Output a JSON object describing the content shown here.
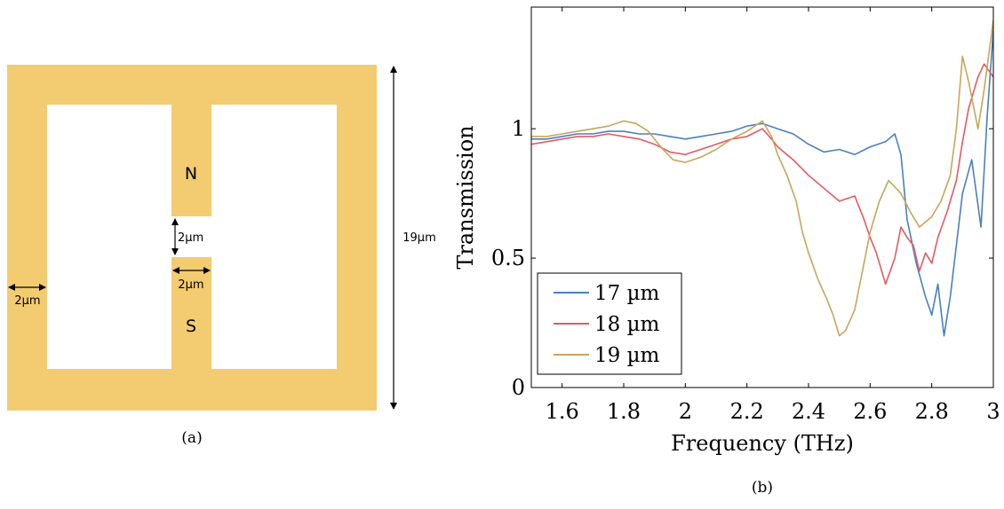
{
  "panel_a": {
    "caption": "(a)",
    "gap_label": "2µm",
    "width_label": "2µm",
    "arm_label": "2µm",
    "height_label": "19µm",
    "north_label": "N",
    "south_label": "S",
    "fill_color": "#f3cb70"
  },
  "panel_b": {
    "caption": "(b)"
  },
  "chart_data": {
    "type": "line",
    "title": "",
    "xlabel": "Frequency (THz)",
    "ylabel": "Transmission",
    "xlim": [
      1.5,
      3.0
    ],
    "ylim": [
      0,
      1.47
    ],
    "xticks": [
      1.6,
      1.8,
      2.0,
      2.2,
      2.4,
      2.6,
      2.8,
      3.0
    ],
    "xtick_labels": [
      "1.6",
      "1.8",
      "2",
      "2.2",
      "2.4",
      "2.6",
      "2.8",
      "3"
    ],
    "yticks": [
      0,
      0.5,
      1
    ],
    "ytick_labels": [
      "0",
      "0.5",
      "1"
    ],
    "grid": false,
    "legend_position": "bottom-left",
    "series": [
      {
        "name": "17 µm",
        "color": "#4a7fc1",
        "points": [
          [
            1.5,
            0.96
          ],
          [
            1.55,
            0.96
          ],
          [
            1.6,
            0.97
          ],
          [
            1.65,
            0.98
          ],
          [
            1.7,
            0.98
          ],
          [
            1.75,
            0.99
          ],
          [
            1.8,
            0.99
          ],
          [
            1.85,
            0.98
          ],
          [
            1.9,
            0.98
          ],
          [
            1.95,
            0.97
          ],
          [
            2.0,
            0.96
          ],
          [
            2.05,
            0.97
          ],
          [
            2.1,
            0.98
          ],
          [
            2.15,
            0.99
          ],
          [
            2.2,
            1.01
          ],
          [
            2.25,
            1.02
          ],
          [
            2.3,
            1.0
          ],
          [
            2.35,
            0.98
          ],
          [
            2.4,
            0.94
          ],
          [
            2.45,
            0.91
          ],
          [
            2.5,
            0.92
          ],
          [
            2.55,
            0.9
          ],
          [
            2.6,
            0.93
          ],
          [
            2.65,
            0.95
          ],
          [
            2.68,
            0.98
          ],
          [
            2.7,
            0.9
          ],
          [
            2.72,
            0.65
          ],
          [
            2.75,
            0.48
          ],
          [
            2.78,
            0.35
          ],
          [
            2.8,
            0.28
          ],
          [
            2.82,
            0.4
          ],
          [
            2.84,
            0.2
          ],
          [
            2.86,
            0.35
          ],
          [
            2.88,
            0.55
          ],
          [
            2.9,
            0.75
          ],
          [
            2.93,
            0.88
          ],
          [
            2.96,
            0.62
          ],
          [
            2.98,
            1.05
          ],
          [
            3.0,
            1.38
          ]
        ]
      },
      {
        "name": "18 µm",
        "color": "#e35a62",
        "points": [
          [
            1.5,
            0.94
          ],
          [
            1.55,
            0.95
          ],
          [
            1.6,
            0.96
          ],
          [
            1.65,
            0.97
          ],
          [
            1.7,
            0.97
          ],
          [
            1.75,
            0.98
          ],
          [
            1.8,
            0.97
          ],
          [
            1.85,
            0.96
          ],
          [
            1.9,
            0.94
          ],
          [
            1.95,
            0.91
          ],
          [
            2.0,
            0.9
          ],
          [
            2.05,
            0.92
          ],
          [
            2.1,
            0.94
          ],
          [
            2.15,
            0.96
          ],
          [
            2.2,
            0.97
          ],
          [
            2.25,
            1.0
          ],
          [
            2.28,
            0.96
          ],
          [
            2.3,
            0.93
          ],
          [
            2.35,
            0.88
          ],
          [
            2.4,
            0.82
          ],
          [
            2.45,
            0.77
          ],
          [
            2.5,
            0.72
          ],
          [
            2.55,
            0.74
          ],
          [
            2.58,
            0.65
          ],
          [
            2.6,
            0.58
          ],
          [
            2.62,
            0.52
          ],
          [
            2.65,
            0.4
          ],
          [
            2.68,
            0.5
          ],
          [
            2.7,
            0.62
          ],
          [
            2.72,
            0.58
          ],
          [
            2.74,
            0.55
          ],
          [
            2.76,
            0.45
          ],
          [
            2.78,
            0.52
          ],
          [
            2.8,
            0.48
          ],
          [
            2.82,
            0.58
          ],
          [
            2.85,
            0.68
          ],
          [
            2.88,
            0.8
          ],
          [
            2.9,
            0.95
          ],
          [
            2.92,
            1.08
          ],
          [
            2.95,
            1.2
          ],
          [
            2.97,
            1.25
          ],
          [
            3.0,
            1.2
          ]
        ]
      },
      {
        "name": "19 µm",
        "color": "#c9a55a",
        "points": [
          [
            1.5,
            0.97
          ],
          [
            1.55,
            0.97
          ],
          [
            1.6,
            0.98
          ],
          [
            1.65,
            0.99
          ],
          [
            1.7,
            1.0
          ],
          [
            1.75,
            1.01
          ],
          [
            1.8,
            1.03
          ],
          [
            1.84,
            1.02
          ],
          [
            1.88,
            0.99
          ],
          [
            1.92,
            0.93
          ],
          [
            1.96,
            0.88
          ],
          [
            2.0,
            0.87
          ],
          [
            2.05,
            0.89
          ],
          [
            2.1,
            0.92
          ],
          [
            2.15,
            0.96
          ],
          [
            2.2,
            0.99
          ],
          [
            2.25,
            1.03
          ],
          [
            2.28,
            0.97
          ],
          [
            2.3,
            0.9
          ],
          [
            2.33,
            0.82
          ],
          [
            2.36,
            0.72
          ],
          [
            2.38,
            0.6
          ],
          [
            2.4,
            0.52
          ],
          [
            2.43,
            0.42
          ],
          [
            2.46,
            0.34
          ],
          [
            2.48,
            0.28
          ],
          [
            2.5,
            0.2
          ],
          [
            2.52,
            0.22
          ],
          [
            2.55,
            0.3
          ],
          [
            2.58,
            0.48
          ],
          [
            2.6,
            0.6
          ],
          [
            2.63,
            0.72
          ],
          [
            2.66,
            0.8
          ],
          [
            2.7,
            0.75
          ],
          [
            2.73,
            0.68
          ],
          [
            2.76,
            0.62
          ],
          [
            2.8,
            0.66
          ],
          [
            2.83,
            0.72
          ],
          [
            2.86,
            0.82
          ],
          [
            2.88,
            1.0
          ],
          [
            2.9,
            1.28
          ],
          [
            2.92,
            1.18
          ],
          [
            2.95,
            1.0
          ],
          [
            2.97,
            1.15
          ],
          [
            3.0,
            1.42
          ]
        ]
      }
    ]
  }
}
